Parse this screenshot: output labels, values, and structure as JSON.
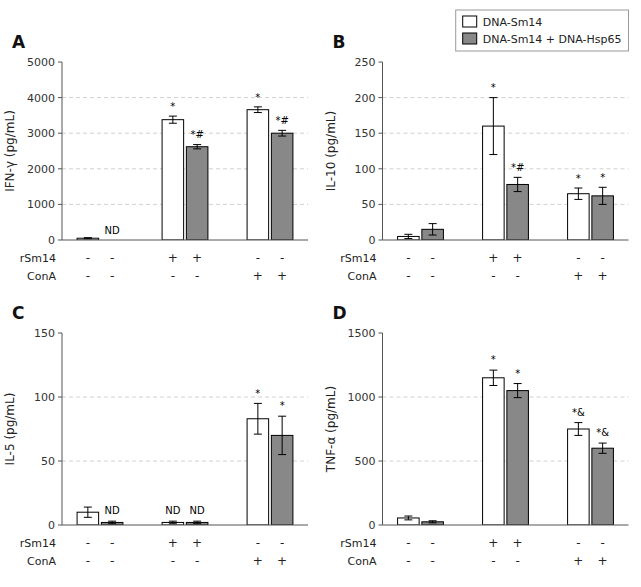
{
  "chart_data": [
    {
      "type": "bar",
      "title": "A",
      "y_label": "IFN-γ (pg/mL)",
      "categories": [
        null,
        null,
        null,
        null,
        null,
        null
      ],
      "ylim": [
        0,
        5000
      ],
      "yticks": [
        0,
        1000,
        2000,
        3000,
        4000,
        5000
      ],
      "grid": true,
      "series": [
        {
          "color": "#ffffff",
          "values": [
            50,
            null,
            3380,
            null,
            3660,
            null
          ],
          "errors": [
            15,
            null,
            100,
            null,
            80,
            null
          ],
          "annotations": [
            null,
            null,
            "*",
            null,
            "*",
            null
          ]
        },
        {
          "color": "#888888",
          "values": [
            null,
            null,
            null,
            2620,
            null,
            3000
          ],
          "errors": [
            null,
            null,
            null,
            60,
            null,
            80
          ],
          "annotations": [
            null,
            "ND",
            null,
            "*#",
            null,
            "*#"
          ]
        }
      ],
      "condition_rows": [
        {
          "label": "rSm14",
          "values": [
            "-",
            "-",
            "+",
            "+",
            "-",
            "-"
          ]
        },
        {
          "label": "ConA",
          "values": [
            "-",
            "-",
            "-",
            "-",
            "+",
            "+"
          ]
        }
      ]
    },
    {
      "type": "bar",
      "title": "B",
      "y_label": "IL-10 (pg/mL)",
      "categories": [
        null,
        null,
        null,
        null,
        null,
        null
      ],
      "ylim": [
        0,
        250
      ],
      "yticks": [
        0,
        50,
        100,
        150,
        200,
        250
      ],
      "grid": true,
      "legend": "upper right",
      "series": [
        {
          "name": "DNA-Sm14",
          "color": "#ffffff",
          "values": [
            5,
            null,
            160,
            null,
            65,
            null
          ],
          "errors": [
            3,
            null,
            40,
            null,
            8,
            null
          ],
          "annotations": [
            null,
            null,
            "*",
            null,
            "*",
            null
          ]
        },
        {
          "name": "DNA-Sm14 + DNA-Hsp65",
          "color": "#888888",
          "values": [
            null,
            15,
            null,
            78,
            null,
            62
          ],
          "errors": [
            null,
            8,
            null,
            10,
            null,
            12
          ],
          "annotations": [
            null,
            null,
            null,
            "*#",
            null,
            "*"
          ]
        }
      ],
      "condition_rows": [
        {
          "label": "rSm14",
          "values": [
            "-",
            "-",
            "+",
            "+",
            "-",
            "-"
          ]
        },
        {
          "label": "ConA",
          "values": [
            "-",
            "-",
            "-",
            "-",
            "+",
            "+"
          ]
        }
      ]
    },
    {
      "type": "bar",
      "title": "C",
      "y_label": "IL-5 (pg/mL)",
      "categories": [
        null,
        null,
        null,
        null,
        null,
        null
      ],
      "ylim": [
        0,
        150
      ],
      "yticks": [
        0,
        50,
        100,
        150
      ],
      "grid": true,
      "series": [
        {
          "color": "#ffffff",
          "values": [
            10,
            null,
            2,
            null,
            83,
            null
          ],
          "errors": [
            4,
            null,
            1,
            null,
            12,
            null
          ],
          "annotations": [
            null,
            null,
            "ND",
            null,
            "*",
            null
          ]
        },
        {
          "color": "#888888",
          "values": [
            null,
            2,
            null,
            2,
            null,
            70
          ],
          "errors": [
            null,
            1,
            null,
            1,
            null,
            15
          ],
          "annotations": [
            null,
            "ND",
            null,
            "ND",
            null,
            "*"
          ]
        }
      ],
      "condition_rows": [
        {
          "label": "rSm14",
          "values": [
            "-",
            "-",
            "+",
            "+",
            "-",
            "-"
          ]
        },
        {
          "label": "ConA",
          "values": [
            "-",
            "-",
            "-",
            "-",
            "+",
            "+"
          ]
        }
      ]
    },
    {
      "type": "bar",
      "title": "D",
      "y_label": "TNF-α (pg/mL)",
      "categories": [
        null,
        null,
        null,
        null,
        null,
        null
      ],
      "ylim": [
        0,
        1500
      ],
      "yticks": [
        0,
        500,
        1000,
        1500
      ],
      "grid": true,
      "series": [
        {
          "color": "#ffffff",
          "values": [
            55,
            null,
            1150,
            null,
            750,
            null
          ],
          "errors": [
            15,
            null,
            60,
            null,
            50,
            null
          ],
          "annotations": [
            null,
            null,
            "*",
            null,
            "*&",
            null
          ]
        },
        {
          "color": "#888888",
          "values": [
            null,
            25,
            null,
            1050,
            null,
            600
          ],
          "errors": [
            null,
            8,
            null,
            55,
            null,
            40
          ],
          "annotations": [
            null,
            null,
            null,
            "*",
            null,
            "*&"
          ]
        }
      ],
      "condition_rows": [
        {
          "label": "rSm14",
          "values": [
            "-",
            "-",
            "+",
            "+",
            "-",
            "-"
          ]
        },
        {
          "label": "ConA",
          "values": [
            "-",
            "-",
            "-",
            "-",
            "+",
            "+"
          ]
        }
      ]
    }
  ]
}
